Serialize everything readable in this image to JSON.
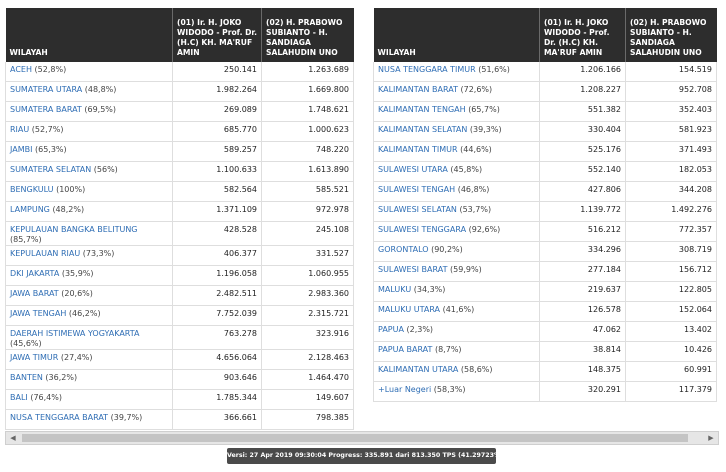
{
  "table_left": {
    "headers": {
      "wilayah": "WILAYAH",
      "candidate1": "(01) Ir. H. JOKO WIDODO - Prof. Dr. (H.C) KH. MA'RUF AMIN",
      "candidate2": "(02) H. PRABOWO SUBIANTO - H. SANDIAGA SALAHUDIN UNO"
    },
    "rows": [
      {
        "name": "ACEH",
        "pct": "(52,8%)",
        "c1": "250.141",
        "c2": "1.263.689"
      },
      {
        "name": "SUMATERA UTARA",
        "pct": "(48,8%)",
        "c1": "1.982.264",
        "c2": "1.669.800"
      },
      {
        "name": "SUMATERA BARAT",
        "pct": "(69,5%)",
        "c1": "269.089",
        "c2": "1.748.621"
      },
      {
        "name": "RIAU",
        "pct": "(52,7%)",
        "c1": "685.770",
        "c2": "1.000.623"
      },
      {
        "name": "JAMBI",
        "pct": "(65,3%)",
        "c1": "589.257",
        "c2": "748.220"
      },
      {
        "name": "SUMATERA SELATAN",
        "pct": "(56%)",
        "c1": "1.100.633",
        "c2": "1.613.890"
      },
      {
        "name": "BENGKULU",
        "pct": "(100%)",
        "c1": "582.564",
        "c2": "585.521"
      },
      {
        "name": "LAMPUNG",
        "pct": "(48,2%)",
        "c1": "1.371.109",
        "c2": "972.978"
      },
      {
        "name": "KEPULAUAN BANGKA BELITUNG",
        "pct": "(85,7%)",
        "c1": "428.528",
        "c2": "245.108"
      },
      {
        "name": "KEPULAUAN RIAU",
        "pct": "(73,3%)",
        "c1": "406.377",
        "c2": "331.527"
      },
      {
        "name": "DKI JAKARTA",
        "pct": "(35,9%)",
        "c1": "1.196.058",
        "c2": "1.060.955"
      },
      {
        "name": "JAWA BARAT",
        "pct": "(20,6%)",
        "c1": "2.482.511",
        "c2": "2.983.360"
      },
      {
        "name": "JAWA TENGAH",
        "pct": "(46,2%)",
        "c1": "7.752.039",
        "c2": "2.315.721"
      },
      {
        "name": "DAERAH ISTIMEWA YOGYAKARTA",
        "pct": "(45,6%)",
        "c1": "763.278",
        "c2": "323.916"
      },
      {
        "name": "JAWA TIMUR",
        "pct": "(27,4%)",
        "c1": "4.656.064",
        "c2": "2.128.463"
      },
      {
        "name": "BANTEN",
        "pct": "(36,2%)",
        "c1": "903.646",
        "c2": "1.464.470"
      },
      {
        "name": "BALI",
        "pct": "(76,4%)",
        "c1": "1.785.344",
        "c2": "149.607"
      },
      {
        "name": "NUSA TENGGARA BARAT",
        "pct": "(39,7%)",
        "c1": "366.661",
        "c2": "798.385"
      }
    ]
  },
  "table_right": {
    "headers": {
      "wilayah": "WILAYAH",
      "candidate1": "(01) Ir. H. JOKO WIDODO - Prof. Dr. (H.C) KH. MA'RUF AMIN",
      "candidate2": "(02) H. PRABOWO SUBIANTO - H. SANDIAGA SALAHUDIN UNO"
    },
    "rows": [
      {
        "name": "NUSA TENGGARA TIMUR",
        "pct": "(51,6%)",
        "c1": "1.206.166",
        "c2": "154.519"
      },
      {
        "name": "KALIMANTAN BARAT",
        "pct": "(72,6%)",
        "c1": "1.208.227",
        "c2": "952.708"
      },
      {
        "name": "KALIMANTAN TENGAH",
        "pct": "(65,7%)",
        "c1": "551.382",
        "c2": "352.403"
      },
      {
        "name": "KALIMANTAN SELATAN",
        "pct": "(39,3%)",
        "c1": "330.404",
        "c2": "581.923"
      },
      {
        "name": "KALIMANTAN TIMUR",
        "pct": "(44,6%)",
        "c1": "525.176",
        "c2": "371.493"
      },
      {
        "name": "SULAWESI UTARA",
        "pct": "(45,8%)",
        "c1": "552.140",
        "c2": "182.053"
      },
      {
        "name": "SULAWESI TENGAH",
        "pct": "(46,8%)",
        "c1": "427.806",
        "c2": "344.208"
      },
      {
        "name": "SULAWESI SELATAN",
        "pct": "(53,7%)",
        "c1": "1.139.772",
        "c2": "1.492.276"
      },
      {
        "name": "SULAWESI TENGGARA",
        "pct": "(92,6%)",
        "c1": "516.212",
        "c2": "772.357"
      },
      {
        "name": "GORONTALO",
        "pct": "(90,2%)",
        "c1": "334.296",
        "c2": "308.719"
      },
      {
        "name": "SULAWESI BARAT",
        "pct": "(59,9%)",
        "c1": "277.184",
        "c2": "156.712"
      },
      {
        "name": "MALUKU",
        "pct": "(34,3%)",
        "c1": "219.637",
        "c2": "122.805"
      },
      {
        "name": "MALUKU UTARA",
        "pct": "(41,6%)",
        "c1": "126.578",
        "c2": "152.064"
      },
      {
        "name": "PAPUA",
        "pct": "(2,3%)",
        "c1": "47.062",
        "c2": "13.402"
      },
      {
        "name": "PAPUA BARAT",
        "pct": "(8,7%)",
        "c1": "38.814",
        "c2": "10.426"
      },
      {
        "name": "KALIMANTAN UTARA",
        "pct": "(58,6%)",
        "c1": "148.375",
        "c2": "60.991"
      },
      {
        "name": "Luar Negeri",
        "pct": "(58,3%)",
        "c1": "320.291",
        "c2": "117.379"
      }
    ]
  },
  "icons": {
    "scroll_left": "triangle-left-icon",
    "scroll_right": "triangle-right-icon"
  },
  "status": {
    "text": "Versi: 27 Apr 2019 09:30:04 Progress: 335.891 dari 813.350 TPS (41.29723%)"
  }
}
